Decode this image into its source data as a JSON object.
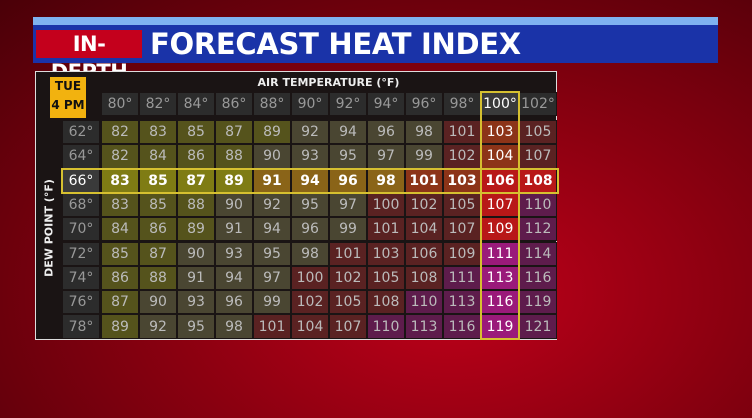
{
  "header": {
    "tag": "IN-DEPTH",
    "title": "FORECAST HEAT INDEX"
  },
  "table": {
    "corner": [
      "TUE",
      "4 PM"
    ],
    "column_title": "AIR TEMPERATURE (°F)",
    "row_title": "DEW POINT (°F)",
    "columns": [
      "80°",
      "82°",
      "84°",
      "86°",
      "88°",
      "90°",
      "92°",
      "94°",
      "96°",
      "98°",
      "100°",
      "102°"
    ],
    "row_labels": [
      "62°",
      "64°",
      "66°",
      "68°",
      "70°",
      "72°",
      "74°",
      "76°",
      "78°"
    ],
    "rows": [
      [
        82,
        83,
        85,
        87,
        89,
        92,
        94,
        96,
        98,
        101,
        103,
        105
      ],
      [
        82,
        84,
        86,
        88,
        90,
        93,
        95,
        97,
        99,
        102,
        104,
        107
      ],
      [
        83,
        85,
        87,
        89,
        91,
        94,
        96,
        98,
        101,
        103,
        106,
        108
      ],
      [
        83,
        85,
        88,
        90,
        92,
        95,
        97,
        100,
        102,
        105,
        107,
        110
      ],
      [
        84,
        86,
        89,
        91,
        94,
        96,
        99,
        101,
        104,
        107,
        109,
        112
      ],
      [
        85,
        87,
        90,
        93,
        95,
        98,
        101,
        103,
        106,
        109,
        111,
        114
      ],
      [
        86,
        88,
        91,
        94,
        97,
        100,
        102,
        105,
        108,
        111,
        113,
        116
      ],
      [
        87,
        90,
        93,
        96,
        99,
        102,
        105,
        108,
        110,
        113,
        116,
        119
      ],
      [
        89,
        92,
        95,
        98,
        101,
        104,
        107,
        110,
        113,
        116,
        119,
        121
      ]
    ]
  }
}
